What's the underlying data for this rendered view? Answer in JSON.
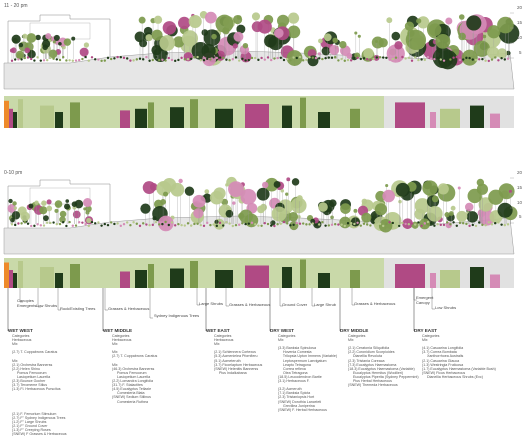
{
  "section_top": {
    "time": "11 - 20 pm",
    "y_ticks": [
      "20",
      "15",
      "10",
      "5"
    ]
  },
  "section_bottom": {
    "time": "0-10 pm",
    "y_ticks": [
      "20",
      "15",
      "10",
      "5"
    ]
  },
  "layer_labels": [
    "Canopies\nEmergents",
    "Low Shrubs",
    "Rock/Existing Trees",
    "Grasses & Herbaceous",
    "Sydney Indigenous Trees",
    "Large Shrubs",
    "Grasses & Herbaceous",
    "Ground Cover",
    "Large Shrub",
    "Grasses & Herbaceous",
    "Emergent\nCanopy",
    "Low Shrubs"
  ],
  "zones": [
    {
      "name": "WET WEST",
      "sub": "Categories\nHerbaceous\nMix\n\n(2.7) T. Cuppabrons Caratus\n\nMix\n(2.1) Orchestra Bannerss\n(2.2) Helen Shinu\n     Pomus Femoorum\n     Lasiopetium Laurella\n(2.3) Bounce Gocher\n(3.7) Teromeme Stilus\n(1.3) Fl. Herbaceous Purscitus\n\n\n\n\n\n(2.1) F. Femorlum Stimulum\n(2.7) F\" Sydney Indigenous Trees\n(1.2) F\" Large Shrubs\n(2.1) F\" Ground Cover\n(1.3) F\" Creeping Roses\n(SNEW) F Grasses & Herbaceous"
    },
    {
      "name": "WET MIDDLE",
      "sub": "Categories\nHerbaceous\nMix\n\nMix\n(2.7) T. Cuppabrons Caratus\n\nMix\n(46.3) Orchestra Bannerss\n     Pomus Femoorum\n     Lasiopetium Laurella\n(2.2) Lomandra Longifolia\n(31.7) F. Stalactites\n(4.5) Eucalyptus Tetlaxie\n     Comesteria Blata\n(SNEW) Sedium Stilinus\n     Comesteria Ruthea"
    },
    {
      "name": "WET EAST",
      "sub": "Categories\nHerbaceous\nMix\n\n(2.1) Schlennera Cortexus\n(5.3) Acmenielea Pfornfieru\n(5.1) Acmeteruth\n(3.7) Ficoelaptum Herbaceous\n(SNEW) Helenitis Bannerss\n     Pius Indalkabana"
    },
    {
      "name": "DRY WEST",
      "sub": "Categories\nMix\n\n(3.3) Banksia Spinulosa\n     Hovenia Comesta\n     Trilopsia Upton Immens (Variable)\n     Leptospermum Laevigatum\n     Leapto Tetragona\n     Correa reflexa\n     Olea Tetragona\n(18.5) Leucodendron Bartie\n(3.1) Herbaceous F.\n\n(3.2) Acmeruth\n(7.1) Banksia Spicta\n(2.3) Tristaniopsis Hort\n(SNEW) Dorothia Lanceleti\n     Grevillea Juniperina\n(SNEW) F. Herbal Herbaceous"
    },
    {
      "name": "DRY MIDDLE",
      "sub": "Categories\nMix\n\n(2.1) Ceratonia Siliquifolia\n(2.2) Coronidium Scorpioides\n     Dianellia Revoluta\n(2.3) Tristania Coreaca\n(7.3) Eucalyptus Haemastoma\n(18.3) Eucalyptus Haemastoma (Variable)\n     Eucalyptus Hermitus (Woollieri)\n     Eucalyptus Piperita (Sydney Peppermint)\n     Pius Herbal Herbaceous\n(SNEW) Themeda Herbaceous"
    },
    {
      "name": "DRY EAST",
      "sub": "Categories\nMix\n\n(4.1) Casuarina Longifolia\n(3.7) Correa Bombata\n     Xanthorrhoea Australis\n(2.1) Casuarina Glauca\n(1.3) Westringia Fruticosa\n(1.7) Eucalyptus Haemastoma (Variable Bush)\n(SNEW) Ficus Herbaceous\n     Dianellia Herbaceous Shrubs (Exc)"
    }
  ],
  "colors": {
    "dark_green": "#1f3b1a",
    "olive_green": "#7d9a4d",
    "light_olive": "#b7c98c",
    "magenta": "#b04a84",
    "pink": "#d58bb6",
    "orange": "#ee8a2a",
    "light_green_band": "#c9d9a9",
    "gray_band": "#e1e1e1"
  }
}
